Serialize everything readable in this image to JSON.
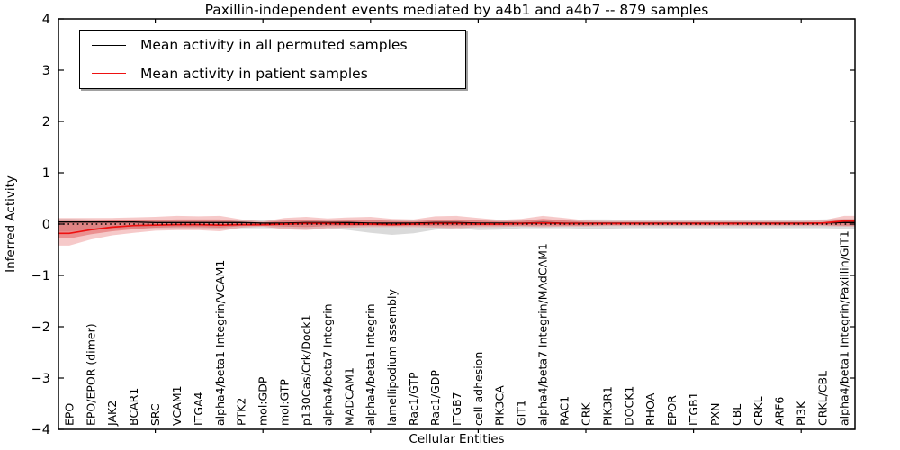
{
  "page": {
    "background": "#ffffff"
  },
  "chart_data": {
    "type": "line",
    "title": "Paxillin-independent events mediated by a4b1 and a4b7 -- 879 samples",
    "xlabel": "Cellular Entities",
    "ylabel": "Inferred Activity",
    "ylim": [
      -4,
      4
    ],
    "yticks": [
      4,
      3,
      2,
      1,
      0,
      -1,
      -2,
      -3,
      -4
    ],
    "ytick_labels": [
      "4",
      "3",
      "2",
      "1",
      "0",
      "−1",
      "−2",
      "−3",
      "−4"
    ],
    "grid": false,
    "zero_line": {
      "value": 0,
      "style": "dotted",
      "color": "#000000"
    },
    "legend": {
      "position": "upper left",
      "entries": [
        {
          "label": "Mean activity in all permuted samples",
          "color": "#000000"
        },
        {
          "label": "Mean activity in patient samples",
          "color": "#ee1111"
        }
      ]
    },
    "x_major_ticks_at_indices": [
      4,
      9,
      14,
      19,
      24,
      29,
      34
    ],
    "categories": [
      "EPO",
      "EPO/EPOR (dimer)",
      "JAK2",
      "BCAR1",
      "SRC",
      "VCAM1",
      "ITGA4",
      "alpha4/beta1 Integrin/VCAM1",
      "PTK2",
      "mol:GDP",
      "mol:GTP",
      "p130Cas/Crk/Dock1",
      "alpha4/beta7 Integrin",
      "MADCAM1",
      "alpha4/beta1 Integrin",
      "lamellipodium assembly",
      "Rac1/GTP",
      "Rac1/GDP",
      "ITGB7",
      "cell adhesion",
      "PIK3CA",
      "GIT1",
      "alpha4/beta7 Integrin/MAdCAM1",
      "RAC1",
      "CRK",
      "PIK3R1",
      "DOCK1",
      "RHOA",
      "EPOR",
      "ITGB1",
      "PXN",
      "CBL",
      "CRKL",
      "ARF6",
      "PI3K",
      "CRKL/CBL",
      "alpha4/beta1 Integrin/Paxillin/GIT1"
    ],
    "series": [
      {
        "name": "Mean activity in all permuted samples",
        "color": "#000000",
        "values": [
          0.04,
          0.04,
          0.04,
          0.04,
          0.03,
          0.03,
          0.03,
          0.03,
          0.03,
          0.02,
          0.02,
          0.03,
          0.03,
          0.03,
          0.02,
          0.02,
          0.02,
          0.03,
          0.03,
          0.02,
          0.02,
          0.02,
          0.03,
          0.02,
          0.02,
          0.02,
          0.02,
          0.02,
          0.02,
          0.02,
          0.02,
          0.02,
          0.02,
          0.02,
          0.02,
          0.02,
          0.03
        ]
      },
      {
        "name": "Mean activity in patient samples",
        "color": "#ee1111",
        "values": [
          -0.18,
          -0.11,
          -0.06,
          -0.03,
          -0.02,
          -0.01,
          -0.01,
          -0.02,
          -0.01,
          -0.01,
          0.0,
          0.01,
          0.01,
          0.0,
          0.0,
          -0.01,
          0.0,
          0.01,
          0.01,
          0.0,
          0.0,
          0.01,
          0.02,
          0.01,
          0.01,
          0.01,
          0.01,
          0.01,
          0.01,
          0.01,
          0.01,
          0.01,
          0.01,
          0.01,
          0.01,
          0.02,
          0.06
        ]
      }
    ],
    "bands": [
      {
        "name": "permuted-range",
        "color": "#9e9e9e",
        "opacity": 0.38,
        "hi": [
          0.1,
          0.09,
          0.08,
          0.08,
          0.08,
          0.08,
          0.08,
          0.08,
          0.08,
          0.07,
          0.08,
          0.08,
          0.08,
          0.08,
          0.08,
          0.08,
          0.08,
          0.08,
          0.08,
          0.08,
          0.08,
          0.08,
          0.08,
          0.08,
          0.09,
          0.09,
          0.08,
          0.08,
          0.08,
          0.08,
          0.08,
          0.08,
          0.08,
          0.08,
          0.08,
          0.09,
          0.1
        ],
        "lo": [
          -0.14,
          -0.1,
          -0.09,
          -0.08,
          -0.08,
          -0.08,
          -0.08,
          -0.09,
          -0.08,
          -0.08,
          -0.08,
          -0.09,
          -0.08,
          -0.12,
          -0.17,
          -0.21,
          -0.18,
          -0.11,
          -0.08,
          -0.12,
          -0.11,
          -0.08,
          -0.08,
          -0.08,
          -0.09,
          -0.09,
          -0.08,
          -0.08,
          -0.08,
          -0.08,
          -0.08,
          -0.08,
          -0.08,
          -0.08,
          -0.08,
          -0.08,
          -0.09
        ]
      },
      {
        "name": "patient-range-outer",
        "color": "#e87070",
        "opacity": 0.38,
        "hi": [
          0.12,
          0.12,
          0.12,
          0.13,
          0.14,
          0.16,
          0.15,
          0.16,
          0.09,
          0.05,
          0.12,
          0.14,
          0.11,
          0.13,
          0.14,
          0.1,
          0.09,
          0.15,
          0.16,
          0.12,
          0.08,
          0.1,
          0.16,
          0.12,
          0.07,
          0.06,
          0.06,
          0.06,
          0.06,
          0.06,
          0.06,
          0.06,
          0.06,
          0.06,
          0.06,
          0.07,
          0.16
        ],
        "lo": [
          -0.42,
          -0.3,
          -0.22,
          -0.17,
          -0.13,
          -0.12,
          -0.12,
          -0.14,
          -0.07,
          -0.05,
          -0.1,
          -0.12,
          -0.08,
          -0.07,
          -0.06,
          -0.06,
          -0.06,
          -0.07,
          -0.08,
          -0.06,
          -0.06,
          -0.05,
          -0.06,
          -0.05,
          -0.05,
          -0.04,
          -0.04,
          -0.04,
          -0.04,
          -0.04,
          -0.04,
          -0.04,
          -0.04,
          -0.04,
          -0.04,
          -0.04,
          -0.05
        ]
      },
      {
        "name": "patient-range-inner",
        "color": "#e05555",
        "opacity": 0.5,
        "hi": [
          0.06,
          0.06,
          0.07,
          0.08,
          0.08,
          0.09,
          0.09,
          0.09,
          0.05,
          0.03,
          0.07,
          0.08,
          0.06,
          0.07,
          0.08,
          0.06,
          0.05,
          0.08,
          0.09,
          0.07,
          0.05,
          0.06,
          0.1,
          0.07,
          0.04,
          0.04,
          0.04,
          0.04,
          0.04,
          0.04,
          0.04,
          0.04,
          0.04,
          0.04,
          0.04,
          0.04,
          0.09
        ],
        "lo": [
          -0.28,
          -0.2,
          -0.14,
          -0.1,
          -0.07,
          -0.06,
          -0.06,
          -0.07,
          -0.04,
          -0.03,
          -0.05,
          -0.06,
          -0.04,
          -0.04,
          -0.03,
          -0.03,
          -0.03,
          -0.04,
          -0.04,
          -0.03,
          -0.03,
          -0.03,
          -0.03,
          -0.03,
          -0.03,
          -0.02,
          -0.02,
          -0.02,
          -0.02,
          -0.02,
          -0.02,
          -0.02,
          -0.02,
          -0.02,
          -0.02,
          -0.02,
          -0.03
        ]
      }
    ]
  }
}
